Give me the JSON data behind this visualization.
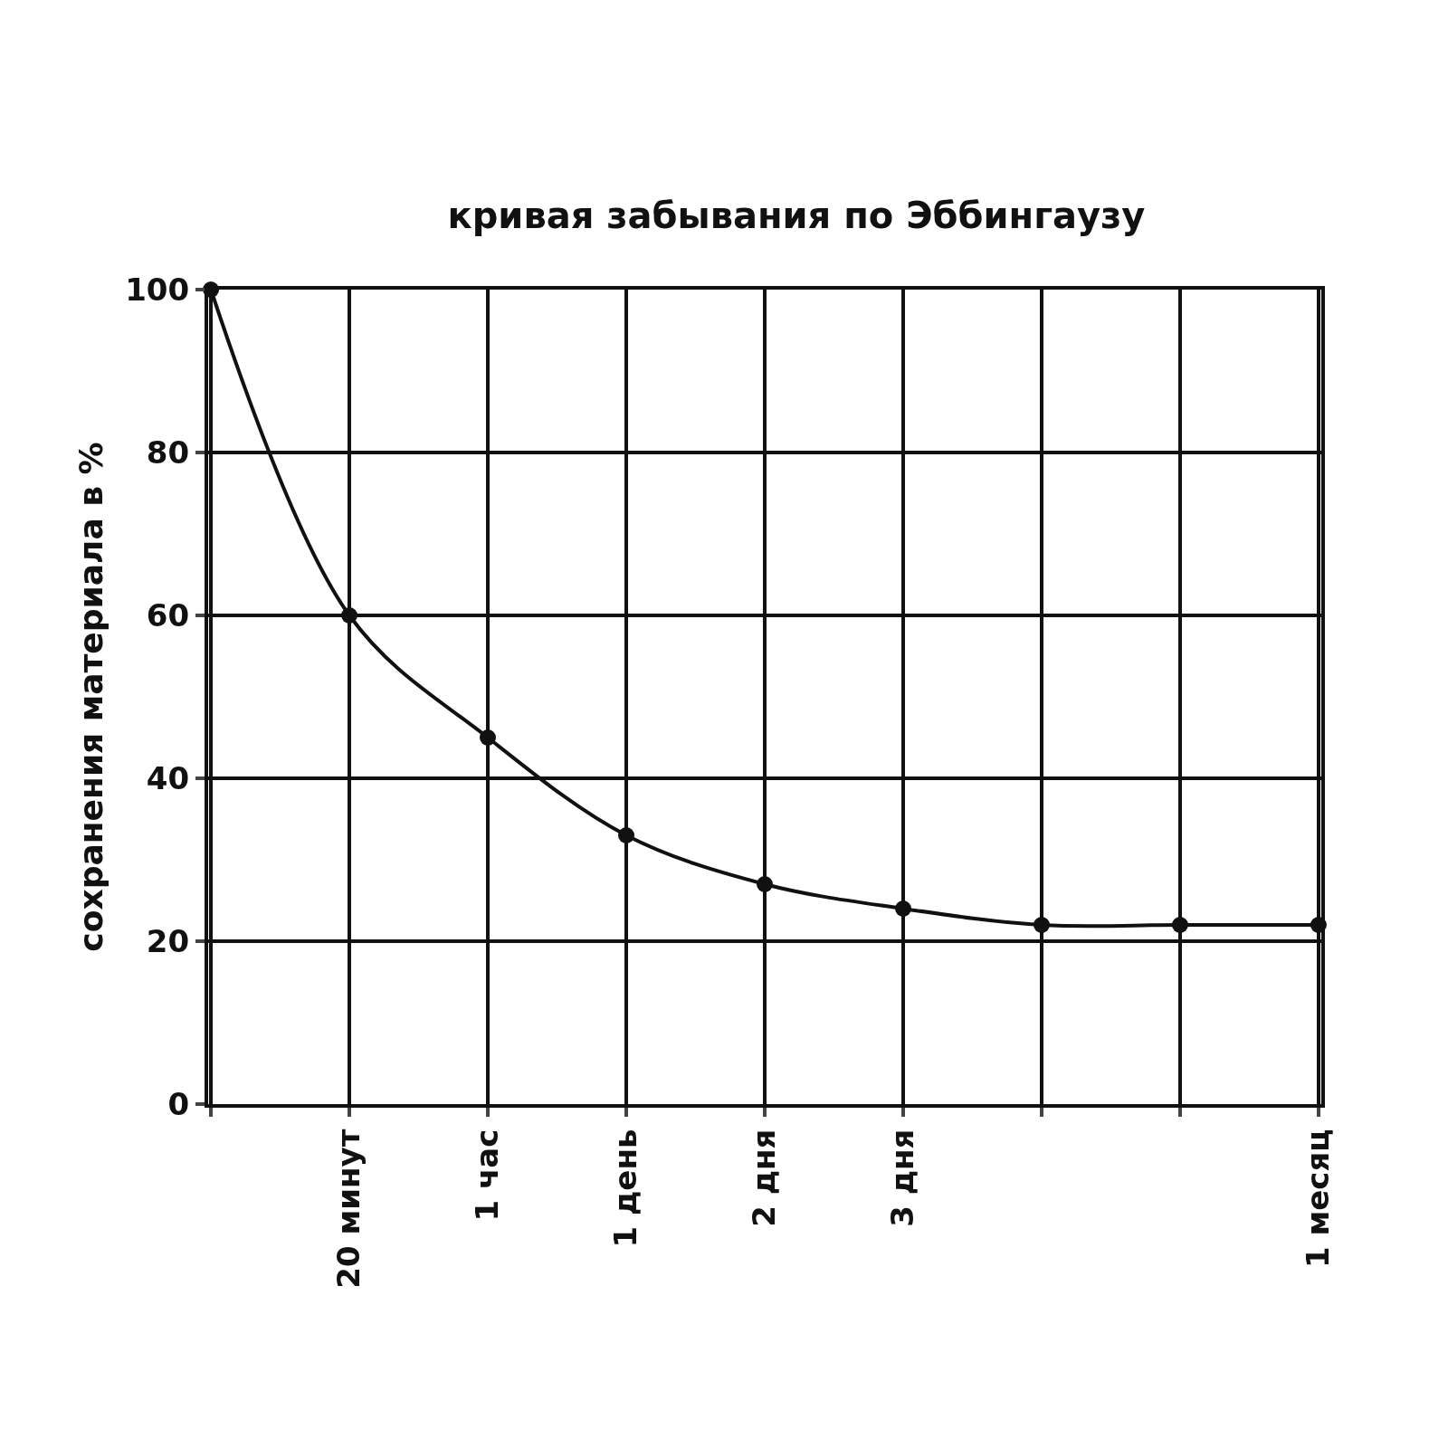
{
  "chart_data": {
    "type": "line",
    "title": "кривая забывания по Эббингаузу",
    "ylabel": "сохранения материала в %",
    "categories": [
      null,
      "20 минут",
      "1 час",
      "1 день",
      "2 дня",
      "3 дня",
      null,
      null,
      "1 месяц"
    ],
    "series": [
      {
        "color": "#111111",
        "values": [
          100,
          60,
          45,
          33,
          27,
          24,
          22,
          22,
          22
        ]
      }
    ],
    "ylim": [
      0,
      100
    ],
    "yticks": [
      0,
      20,
      40,
      60,
      80,
      100
    ],
    "grid": true,
    "legend": false,
    "marker": "circle",
    "line_style": "solid"
  }
}
